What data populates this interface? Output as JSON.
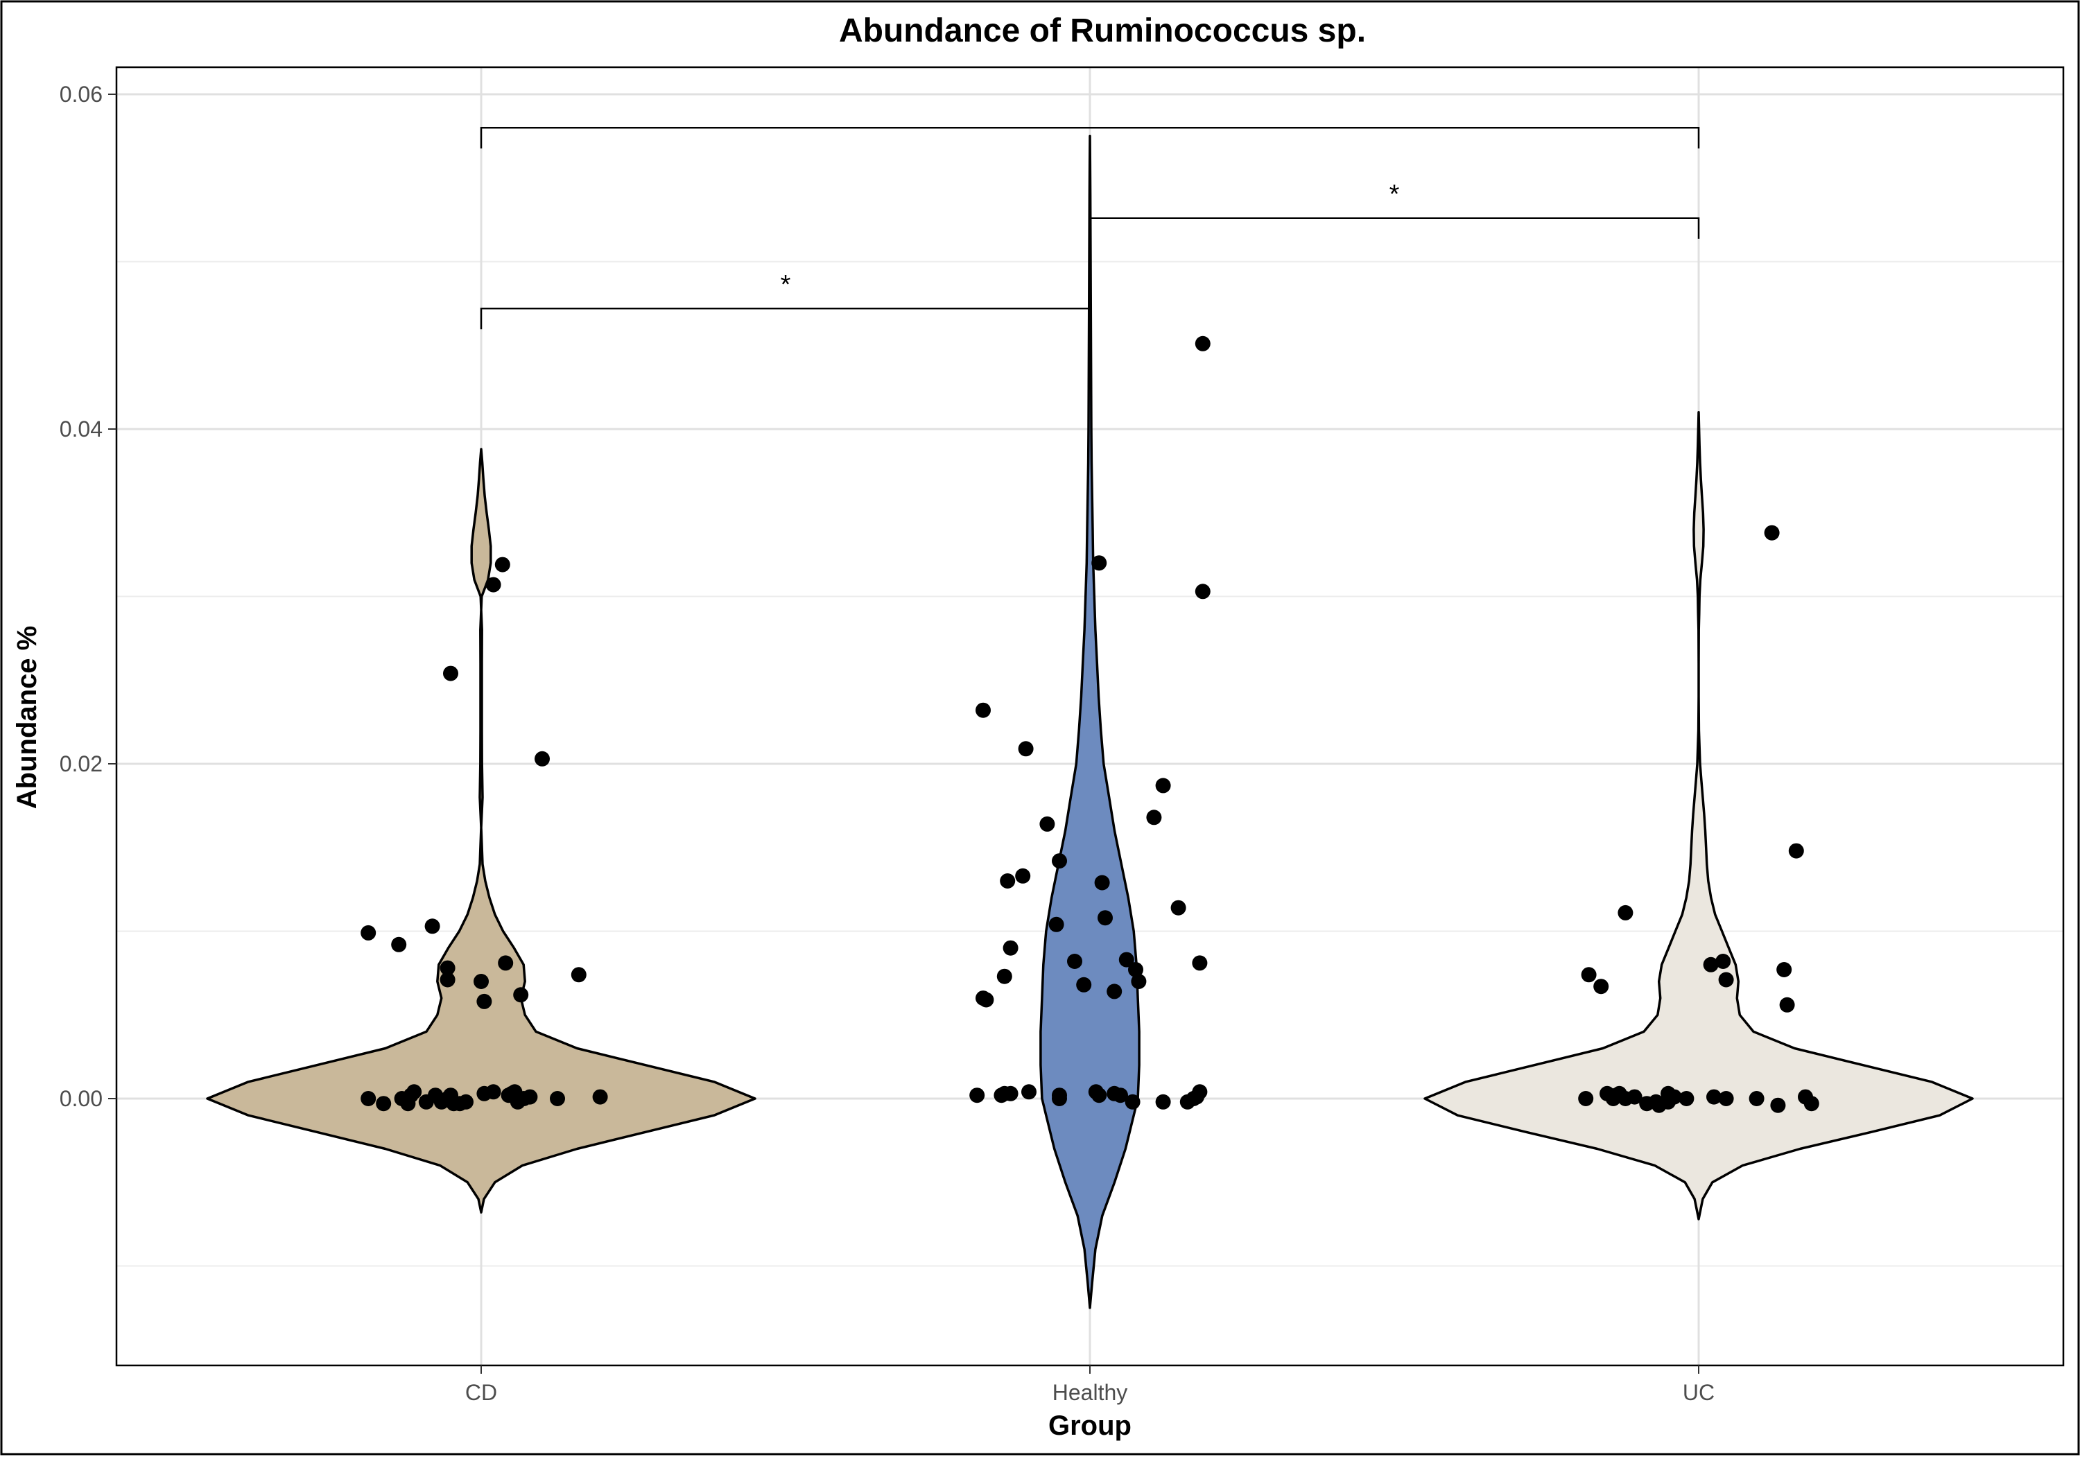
{
  "chart_data": {
    "type": "violin",
    "title": "Abundance of Ruminococcus sp.",
    "xlabel": "Group",
    "ylabel": "Abundance %",
    "categories": [
      "CD",
      "Healthy",
      "UC"
    ],
    "ylim": [
      -0.016,
      0.062
    ],
    "yticks": [
      0.0,
      0.02,
      0.04,
      0.06
    ],
    "ytick_labels": [
      "0.00",
      "0.02",
      "0.04",
      "0.06"
    ],
    "grid": true,
    "legend": "none",
    "colors": {
      "CD": "#c9b89a",
      "Healthy": "#6d8bbf",
      "UC": "#ebe7df"
    },
    "violins": [
      {
        "group": "CD",
        "ymin": -0.0068,
        "ymax": 0.0388,
        "profile": [
          [
            -0.0068,
            0
          ],
          [
            -0.006,
            0.01
          ],
          [
            -0.005,
            0.05
          ],
          [
            -0.004,
            0.15
          ],
          [
            -0.003,
            0.35
          ],
          [
            -0.002,
            0.6
          ],
          [
            -0.001,
            0.85
          ],
          [
            0.0,
            1.0
          ],
          [
            0.001,
            0.85
          ],
          [
            0.002,
            0.6
          ],
          [
            0.003,
            0.35
          ],
          [
            0.004,
            0.2
          ],
          [
            0.005,
            0.16
          ],
          [
            0.006,
            0.145
          ],
          [
            0.007,
            0.16
          ],
          [
            0.008,
            0.155
          ],
          [
            0.009,
            0.12
          ],
          [
            0.01,
            0.08
          ],
          [
            0.011,
            0.05
          ],
          [
            0.012,
            0.03
          ],
          [
            0.013,
            0.015
          ],
          [
            0.014,
            0.005
          ],
          [
            0.016,
            0.0005
          ],
          [
            0.018,
            -0.005
          ],
          [
            0.02,
            -0.003
          ],
          [
            0.022,
            -0.0025
          ],
          [
            0.024,
            -0.0025
          ],
          [
            0.026,
            -0.0025
          ],
          [
            0.028,
            -0.003
          ],
          [
            0.03,
            0.002
          ],
          [
            0.031,
            0.025
          ],
          [
            0.032,
            0.035
          ],
          [
            0.033,
            0.035
          ],
          [
            0.034,
            0.028
          ],
          [
            0.035,
            0.02
          ],
          [
            0.036,
            0.013
          ],
          [
            0.037,
            0.008
          ],
          [
            0.038,
            0.004
          ],
          [
            0.0388,
            0
          ]
        ]
      },
      {
        "group": "Healthy",
        "ymin": -0.0125,
        "ymax": 0.0575,
        "profile": [
          [
            -0.0125,
            0
          ],
          [
            -0.011,
            0.008
          ],
          [
            -0.009,
            0.02
          ],
          [
            -0.007,
            0.045
          ],
          [
            -0.005,
            0.09
          ],
          [
            -0.003,
            0.13
          ],
          [
            -0.001,
            0.16
          ],
          [
            0.0,
            0.175
          ],
          [
            0.002,
            0.18
          ],
          [
            0.004,
            0.18
          ],
          [
            0.006,
            0.175
          ],
          [
            0.008,
            0.17
          ],
          [
            0.01,
            0.16
          ],
          [
            0.012,
            0.14
          ],
          [
            0.014,
            0.115
          ],
          [
            0.016,
            0.09
          ],
          [
            0.018,
            0.07
          ],
          [
            0.02,
            0.05
          ],
          [
            0.022,
            0.04
          ],
          [
            0.024,
            0.032
          ],
          [
            0.026,
            0.026
          ],
          [
            0.028,
            0.02
          ],
          [
            0.03,
            0.016
          ],
          [
            0.032,
            0.012
          ],
          [
            0.034,
            0.01
          ],
          [
            0.036,
            0.008
          ],
          [
            0.038,
            0.006
          ],
          [
            0.04,
            0.005
          ],
          [
            0.042,
            0.0045
          ],
          [
            0.044,
            0.004
          ],
          [
            0.046,
            0.0035
          ],
          [
            0.048,
            0.003
          ],
          [
            0.05,
            0.0025
          ],
          [
            0.052,
            0.002
          ],
          [
            0.054,
            0.0015
          ],
          [
            0.056,
            0.0008
          ],
          [
            0.0575,
            0
          ]
        ]
      },
      {
        "group": "UC",
        "ymin": -0.0072,
        "ymax": 0.041,
        "profile": [
          [
            -0.0072,
            0
          ],
          [
            -0.006,
            0.015
          ],
          [
            -0.005,
            0.05
          ],
          [
            -0.004,
            0.16
          ],
          [
            -0.003,
            0.37
          ],
          [
            -0.002,
            0.63
          ],
          [
            -0.001,
            0.88
          ],
          [
            0.0,
            1.0
          ],
          [
            0.001,
            0.85
          ],
          [
            0.002,
            0.6
          ],
          [
            0.003,
            0.35
          ],
          [
            0.004,
            0.2
          ],
          [
            0.005,
            0.15
          ],
          [
            0.006,
            0.14
          ],
          [
            0.007,
            0.145
          ],
          [
            0.008,
            0.135
          ],
          [
            0.009,
            0.11
          ],
          [
            0.01,
            0.085
          ],
          [
            0.011,
            0.06
          ],
          [
            0.012,
            0.045
          ],
          [
            0.013,
            0.035
          ],
          [
            0.014,
            0.03
          ],
          [
            0.015,
            0.027
          ],
          [
            0.016,
            0.024
          ],
          [
            0.017,
            0.02
          ],
          [
            0.018,
            0.015
          ],
          [
            0.019,
            0.01
          ],
          [
            0.02,
            0.005
          ],
          [
            0.022,
            0.001
          ],
          [
            0.024,
            0.0
          ],
          [
            0.026,
            0.0
          ],
          [
            0.028,
            0.0005
          ],
          [
            0.029,
            0.002
          ],
          [
            0.03,
            0.003
          ],
          [
            0.031,
            0.006
          ],
          [
            0.032,
            0.012
          ],
          [
            0.033,
            0.017
          ],
          [
            0.034,
            0.018
          ],
          [
            0.035,
            0.016
          ],
          [
            0.036,
            0.012
          ],
          [
            0.037,
            0.008
          ],
          [
            0.038,
            0.005
          ],
          [
            0.039,
            0.003
          ],
          [
            0.04,
            0.0015
          ],
          [
            0.041,
            0
          ]
        ]
      }
    ],
    "points": [
      {
        "group": "CD",
        "x": -0.185,
        "y": 0.0
      },
      {
        "group": "CD",
        "x": -0.16,
        "y": -0.0003
      },
      {
        "group": "CD",
        "x": -0.13,
        "y": 0.0
      },
      {
        "group": "CD",
        "x": -0.12,
        "y": -0.0003
      },
      {
        "group": "CD",
        "x": -0.115,
        "y": 0.0002
      },
      {
        "group": "CD",
        "x": -0.11,
        "y": 0.0004
      },
      {
        "group": "CD",
        "x": -0.09,
        "y": -0.0002
      },
      {
        "group": "CD",
        "x": -0.075,
        "y": 0.0002
      },
      {
        "group": "CD",
        "x": -0.065,
        "y": -0.0002
      },
      {
        "group": "CD",
        "x": -0.055,
        "y": 0.0
      },
      {
        "group": "CD",
        "x": -0.05,
        "y": 0.0002
      },
      {
        "group": "CD",
        "x": -0.045,
        "y": -0.0003
      },
      {
        "group": "CD",
        "x": -0.035,
        "y": -0.0003
      },
      {
        "group": "CD",
        "x": -0.025,
        "y": -0.0002
      },
      {
        "group": "CD",
        "x": 0.005,
        "y": 0.0003
      },
      {
        "group": "CD",
        "x": 0.02,
        "y": 0.0004
      },
      {
        "group": "CD",
        "x": 0.045,
        "y": 0.0002
      },
      {
        "group": "CD",
        "x": 0.05,
        "y": 0.0003
      },
      {
        "group": "CD",
        "x": 0.055,
        "y": 0.0004
      },
      {
        "group": "CD",
        "x": 0.06,
        "y": -0.0002
      },
      {
        "group": "CD",
        "x": 0.07,
        "y": 0.0
      },
      {
        "group": "CD",
        "x": 0.08,
        "y": 0.0001
      },
      {
        "group": "CD",
        "x": 0.125,
        "y": 0.0
      },
      {
        "group": "CD",
        "x": 0.195,
        "y": 0.0001
      },
      {
        "group": "CD",
        "x": -0.185,
        "y": 0.0099
      },
      {
        "group": "CD",
        "x": -0.135,
        "y": 0.0092
      },
      {
        "group": "CD",
        "x": -0.08,
        "y": 0.0103
      },
      {
        "group": "CD",
        "x": -0.055,
        "y": 0.0078
      },
      {
        "group": "CD",
        "x": -0.055,
        "y": 0.0071
      },
      {
        "group": "CD",
        "x": 0.0,
        "y": 0.007
      },
      {
        "group": "CD",
        "x": 0.005,
        "y": 0.0058
      },
      {
        "group": "CD",
        "x": 0.04,
        "y": 0.0081
      },
      {
        "group": "CD",
        "x": 0.065,
        "y": 0.0062
      },
      {
        "group": "CD",
        "x": 0.16,
        "y": 0.0074
      },
      {
        "group": "CD",
        "x": 0.1,
        "y": 0.0203
      },
      {
        "group": "CD",
        "x": -0.05,
        "y": 0.0254
      },
      {
        "group": "CD",
        "x": 0.02,
        "y": 0.0307
      },
      {
        "group": "CD",
        "x": 0.035,
        "y": 0.0319
      },
      {
        "group": "Healthy",
        "x": -0.185,
        "y": 0.0002
      },
      {
        "group": "Healthy",
        "x": -0.145,
        "y": 0.0002
      },
      {
        "group": "Healthy",
        "x": -0.14,
        "y": 0.0003
      },
      {
        "group": "Healthy",
        "x": -0.13,
        "y": 0.0003
      },
      {
        "group": "Healthy",
        "x": -0.1,
        "y": 0.0004
      },
      {
        "group": "Healthy",
        "x": -0.05,
        "y": 0.0002
      },
      {
        "group": "Healthy",
        "x": -0.05,
        "y": 0.0
      },
      {
        "group": "Healthy",
        "x": 0.01,
        "y": 0.0004
      },
      {
        "group": "Healthy",
        "x": 0.015,
        "y": 0.0002
      },
      {
        "group": "Healthy",
        "x": 0.04,
        "y": 0.0003
      },
      {
        "group": "Healthy",
        "x": 0.05,
        "y": 0.0002
      },
      {
        "group": "Healthy",
        "x": 0.07,
        "y": -0.0002
      },
      {
        "group": "Healthy",
        "x": 0.12,
        "y": -0.0002
      },
      {
        "group": "Healthy",
        "x": 0.16,
        "y": -0.0002
      },
      {
        "group": "Healthy",
        "x": 0.17,
        "y": 0.0
      },
      {
        "group": "Healthy",
        "x": 0.175,
        "y": 0.0001
      },
      {
        "group": "Healthy",
        "x": 0.18,
        "y": 0.0004
      },
      {
        "group": "Healthy",
        "x": -0.175,
        "y": 0.006
      },
      {
        "group": "Healthy",
        "x": -0.17,
        "y": 0.0059
      },
      {
        "group": "Healthy",
        "x": -0.14,
        "y": 0.0073
      },
      {
        "group": "Healthy",
        "x": -0.13,
        "y": 0.009
      },
      {
        "group": "Healthy",
        "x": -0.135,
        "y": 0.013
      },
      {
        "group": "Healthy",
        "x": -0.11,
        "y": 0.0133
      },
      {
        "group": "Healthy",
        "x": -0.07,
        "y": 0.0164
      },
      {
        "group": "Healthy",
        "x": -0.055,
        "y": 0.0104
      },
      {
        "group": "Healthy",
        "x": -0.05,
        "y": 0.0142
      },
      {
        "group": "Healthy",
        "x": -0.025,
        "y": 0.0082
      },
      {
        "group": "Healthy",
        "x": -0.01,
        "y": 0.0068
      },
      {
        "group": "Healthy",
        "x": 0.02,
        "y": 0.0129
      },
      {
        "group": "Healthy",
        "x": 0.025,
        "y": 0.0108
      },
      {
        "group": "Healthy",
        "x": 0.04,
        "y": 0.0064
      },
      {
        "group": "Healthy",
        "x": 0.06,
        "y": 0.0083
      },
      {
        "group": "Healthy",
        "x": 0.075,
        "y": 0.0077
      },
      {
        "group": "Healthy",
        "x": 0.08,
        "y": 0.007
      },
      {
        "group": "Healthy",
        "x": 0.105,
        "y": 0.0168
      },
      {
        "group": "Healthy",
        "x": 0.12,
        "y": 0.0187
      },
      {
        "group": "Healthy",
        "x": 0.145,
        "y": 0.0114
      },
      {
        "group": "Healthy",
        "x": 0.18,
        "y": 0.0081
      },
      {
        "group": "Healthy",
        "x": -0.175,
        "y": 0.0232
      },
      {
        "group": "Healthy",
        "x": -0.105,
        "y": 0.0209
      },
      {
        "group": "Healthy",
        "x": 0.015,
        "y": 0.032
      },
      {
        "group": "Healthy",
        "x": 0.185,
        "y": 0.0303
      },
      {
        "group": "Healthy",
        "x": 0.185,
        "y": 0.0451
      },
      {
        "group": "UC",
        "x": -0.185,
        "y": 0.0
      },
      {
        "group": "UC",
        "x": -0.15,
        "y": 0.0003
      },
      {
        "group": "UC",
        "x": -0.14,
        "y": 0.0
      },
      {
        "group": "UC",
        "x": -0.135,
        "y": 0.0002
      },
      {
        "group": "UC",
        "x": -0.13,
        "y": 0.0003
      },
      {
        "group": "UC",
        "x": -0.12,
        "y": 0.0
      },
      {
        "group": "UC",
        "x": -0.105,
        "y": 0.0001
      },
      {
        "group": "UC",
        "x": -0.085,
        "y": -0.0003
      },
      {
        "group": "UC",
        "x": -0.07,
        "y": -0.0002
      },
      {
        "group": "UC",
        "x": -0.065,
        "y": -0.0004
      },
      {
        "group": "UC",
        "x": -0.05,
        "y": -0.0002
      },
      {
        "group": "UC",
        "x": -0.05,
        "y": 0.0003
      },
      {
        "group": "UC",
        "x": -0.04,
        "y": 0.0001
      },
      {
        "group": "UC",
        "x": -0.02,
        "y": 0.0
      },
      {
        "group": "UC",
        "x": 0.025,
        "y": 0.0001
      },
      {
        "group": "UC",
        "x": 0.045,
        "y": 0.0
      },
      {
        "group": "UC",
        "x": 0.095,
        "y": 0.0
      },
      {
        "group": "UC",
        "x": 0.13,
        "y": -0.0004
      },
      {
        "group": "UC",
        "x": 0.175,
        "y": 0.0001
      },
      {
        "group": "UC",
        "x": 0.185,
        "y": -0.0003
      },
      {
        "group": "UC",
        "x": -0.18,
        "y": 0.0074
      },
      {
        "group": "UC",
        "x": -0.16,
        "y": 0.0067
      },
      {
        "group": "UC",
        "x": -0.12,
        "y": 0.0111
      },
      {
        "group": "UC",
        "x": 0.02,
        "y": 0.008
      },
      {
        "group": "UC",
        "x": 0.04,
        "y": 0.0082
      },
      {
        "group": "UC",
        "x": 0.045,
        "y": 0.0071
      },
      {
        "group": "UC",
        "x": 0.14,
        "y": 0.0077
      },
      {
        "group": "UC",
        "x": 0.145,
        "y": 0.0056
      },
      {
        "group": "UC",
        "x": 0.16,
        "y": 0.0148
      },
      {
        "group": "UC",
        "x": 0.12,
        "y": 0.0338
      }
    ],
    "significance": [
      {
        "from": "CD",
        "to": "UC",
        "y": 0.058,
        "label": ""
      },
      {
        "from": "Healthy",
        "to": "UC",
        "y": 0.0526,
        "label": "*"
      },
      {
        "from": "CD",
        "to": "Healthy",
        "y": 0.0472,
        "label": "*"
      }
    ]
  }
}
